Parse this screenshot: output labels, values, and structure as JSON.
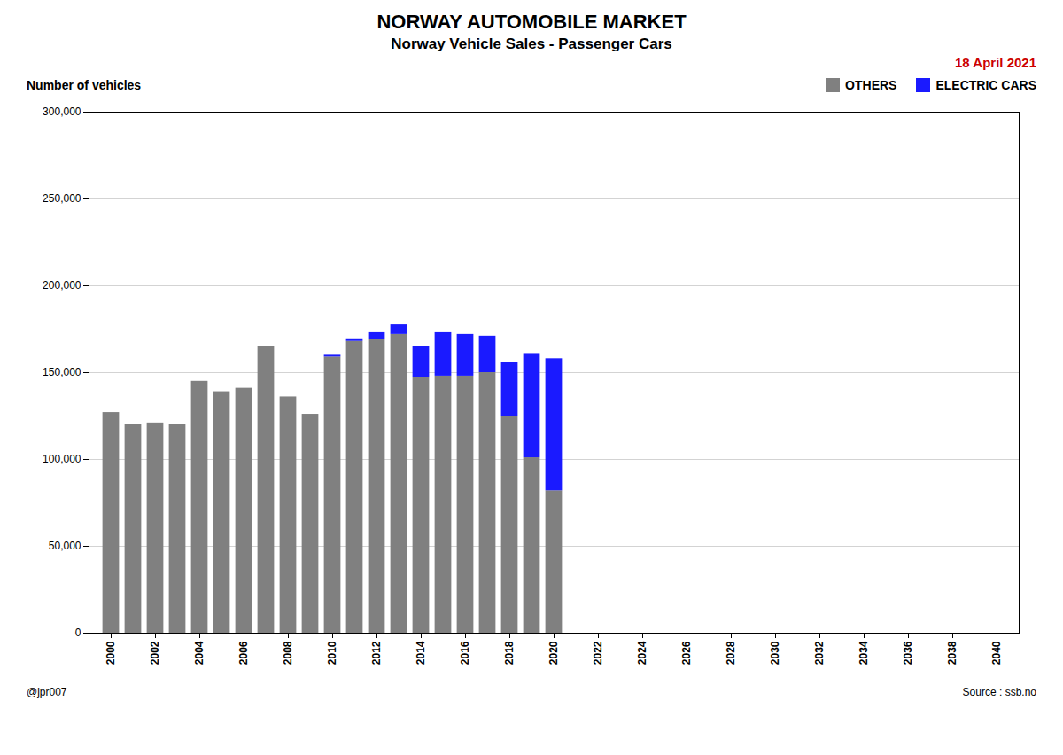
{
  "chart_data": {
    "type": "bar",
    "title": "NORWAY AUTOMOBILE MARKET",
    "subtitle": "Norway Vehicle Sales - Passenger Cars",
    "ylabel": "Number of vehicles",
    "annotations": [
      {
        "text": "18 April 2021",
        "color": "#cc0000"
      },
      {
        "text": "@jpr007"
      },
      {
        "text": "Source : ssb.no"
      }
    ],
    "x": [
      2000,
      2001,
      2002,
      2003,
      2004,
      2005,
      2006,
      2007,
      2008,
      2009,
      2010,
      2011,
      2012,
      2013,
      2014,
      2015,
      2016,
      2017,
      2018,
      2019,
      2020
    ],
    "series": [
      {
        "name": "OTHERS",
        "color": "#808080",
        "values": [
          127000,
          120000,
          121000,
          120000,
          145000,
          139000,
          141000,
          165000,
          136000,
          126000,
          159000,
          168000,
          169000,
          172000,
          147000,
          148000,
          148000,
          150000,
          125000,
          101000,
          82000
        ]
      },
      {
        "name": "ELECTRIC CARS",
        "color": "#1a1aff",
        "values": [
          0,
          0,
          0,
          0,
          0,
          0,
          0,
          0,
          0,
          0,
          1000,
          1500,
          4000,
          5500,
          18000,
          25000,
          24000,
          21000,
          31000,
          60000,
          76000
        ]
      }
    ],
    "stacked": true,
    "xlim": [
      1999.0,
      2041.0
    ],
    "xticks": [
      2000,
      2002,
      2004,
      2006,
      2008,
      2010,
      2012,
      2014,
      2016,
      2018,
      2020,
      2022,
      2024,
      2026,
      2028,
      2030,
      2032,
      2034,
      2036,
      2038,
      2040
    ],
    "ylim": [
      0,
      300000
    ],
    "yticks": [
      0,
      {
        "value": 50000,
        "label": "50,000"
      },
      {
        "value": 100000,
        "label": "100,000"
      },
      {
        "value": 150000,
        "label": "150,000"
      },
      {
        "value": 200000,
        "label": "200,000"
      },
      {
        "value": 250000,
        "label": "250,000"
      },
      {
        "value": 300000,
        "label": "300,000"
      }
    ],
    "grid": "y",
    "legend": "upper right"
  }
}
